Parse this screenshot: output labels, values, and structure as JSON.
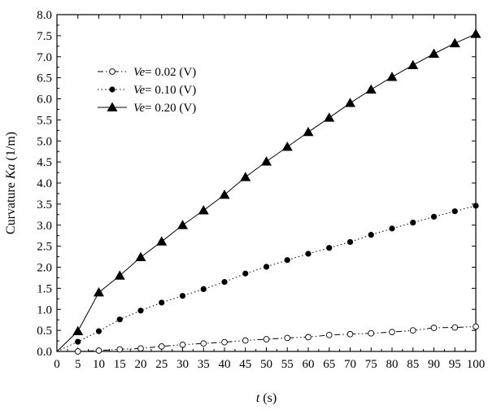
{
  "chart_data": {
    "type": "line",
    "xlabel": {
      "italic": "t",
      "rest": " (s)"
    },
    "ylabel": {
      "prefix": "Curvature ",
      "italic": "Ka",
      "suffix": " (1/m)"
    },
    "xlim": [
      0,
      100
    ],
    "ylim": [
      0,
      8.0
    ],
    "x_ticks": [
      0,
      5,
      10,
      15,
      20,
      25,
      30,
      35,
      40,
      45,
      50,
      55,
      60,
      65,
      70,
      75,
      80,
      85,
      90,
      95,
      100
    ],
    "y_ticks": [
      "0.0",
      "0.5",
      "1.0",
      "1.5",
      "2.0",
      "2.5",
      "3.0",
      "3.5",
      "4.0",
      "4.5",
      "5.0",
      "5.5",
      "6.0",
      "6.5",
      "7.0",
      "7.5",
      "8.0"
    ],
    "grid": false,
    "legend_position": "upper-left",
    "x": [
      0,
      5,
      10,
      15,
      20,
      25,
      30,
      35,
      40,
      45,
      50,
      55,
      60,
      65,
      70,
      75,
      80,
      85,
      90,
      95,
      100
    ],
    "series": [
      {
        "name": "Ve= 0.02 (V)",
        "legend_italic": "Ve",
        "legend_rest": "= 0.02 (V)",
        "marker": "open-circle",
        "line_style": "dash-dot-dot",
        "values": [
          0.0,
          0.0,
          0.02,
          0.05,
          0.07,
          0.12,
          0.16,
          0.19,
          0.22,
          0.26,
          0.29,
          0.32,
          0.34,
          0.39,
          0.41,
          0.43,
          0.46,
          0.5,
          0.56,
          0.57,
          0.59
        ]
      },
      {
        "name": "Ve= 0.10 (V)",
        "legend_italic": "Ve",
        "legend_rest": "= 0.10 (V)",
        "marker": "filled-circle",
        "line_style": "dotted",
        "values": [
          0.0,
          0.23,
          0.48,
          0.76,
          0.97,
          1.16,
          1.32,
          1.48,
          1.65,
          1.85,
          2.01,
          2.17,
          2.32,
          2.46,
          2.6,
          2.77,
          2.92,
          3.06,
          3.2,
          3.33,
          3.46
        ]
      },
      {
        "name": "Ve= 0.20 (V)",
        "legend_italic": "Ve",
        "legend_rest": "= 0.20 (V)",
        "marker": "filled-triangle",
        "line_style": "solid",
        "values": [
          0.0,
          0.48,
          1.4,
          1.8,
          2.24,
          2.61,
          3.0,
          3.35,
          3.72,
          4.14,
          4.51,
          4.86,
          5.21,
          5.55,
          5.9,
          6.22,
          6.52,
          6.8,
          7.07,
          7.32,
          7.54
        ]
      }
    ]
  }
}
